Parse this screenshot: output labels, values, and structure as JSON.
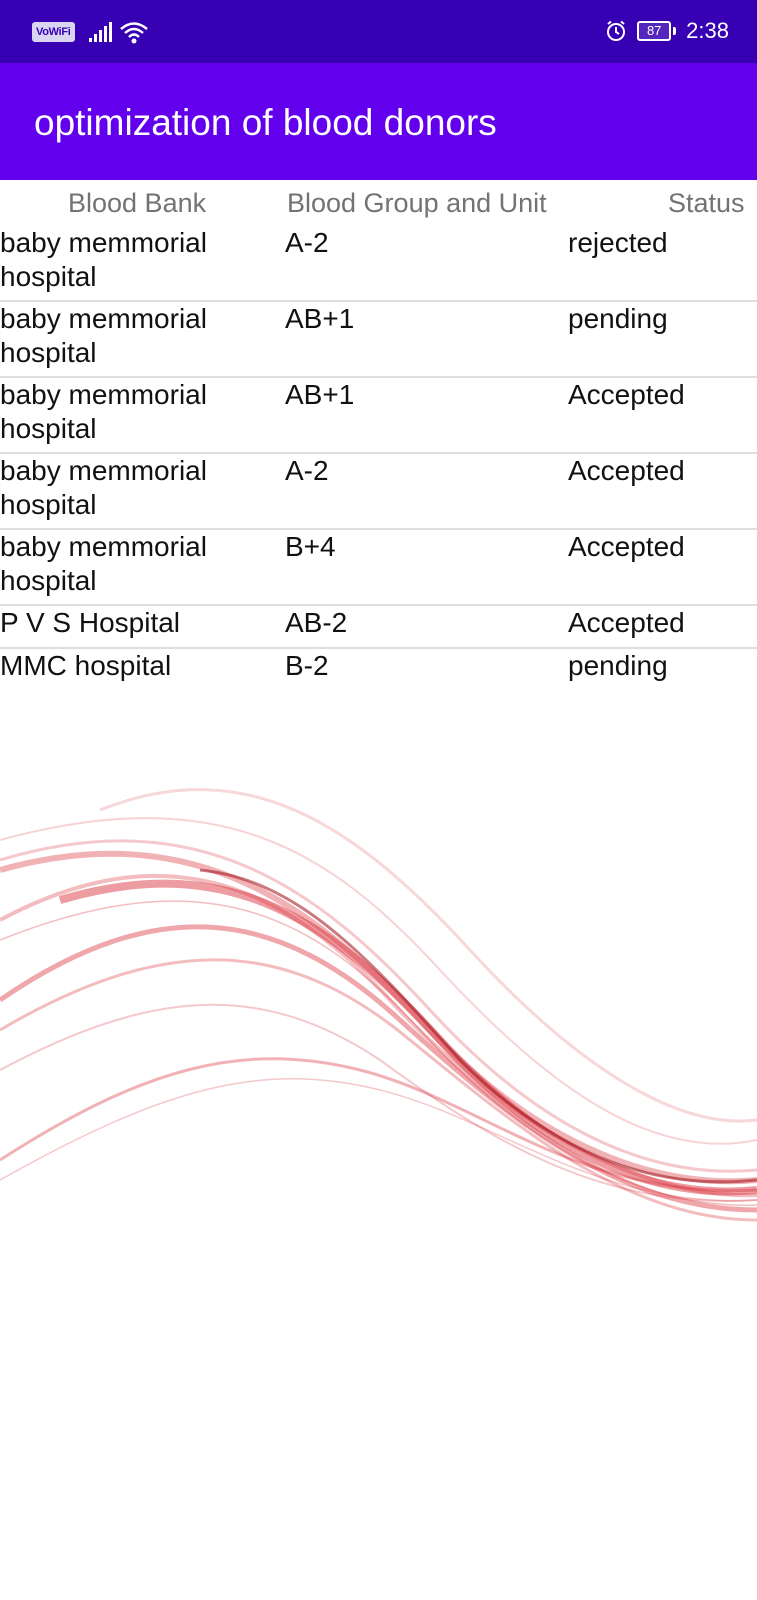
{
  "status_bar": {
    "vowifi": "VoWiFi",
    "battery": "87",
    "time": "2:38",
    "icons": [
      "signal-icon",
      "wifi-icon",
      "alarm-icon",
      "battery-icon"
    ]
  },
  "app_bar": {
    "title": "optimization of blood donors",
    "color": "#6200ee",
    "status_color": "#3700b3"
  },
  "table": {
    "headers": {
      "bank": "Blood Bank",
      "group": "Blood Group and Unit",
      "status": "Status"
    },
    "rows": [
      {
        "bank": "baby memmorial hospital",
        "group": "A-2",
        "status": "rejected"
      },
      {
        "bank": "baby memmorial hospital",
        "group": "AB+1",
        "status": "pending"
      },
      {
        "bank": "baby memmorial hospital",
        "group": "AB+1",
        "status": "Accepted"
      },
      {
        "bank": "baby memmorial hospital",
        "group": "A-2",
        "status": "Accepted"
      },
      {
        "bank": "baby memmorial hospital",
        "group": "B+4",
        "status": "Accepted"
      },
      {
        "bank": "P V S Hospital",
        "group": "AB-2",
        "status": "Accepted"
      },
      {
        "bank": "MMC hospital",
        "group": "B-2",
        "status": "pending"
      }
    ]
  },
  "decoration": {
    "wave_color": "#d8232e"
  }
}
